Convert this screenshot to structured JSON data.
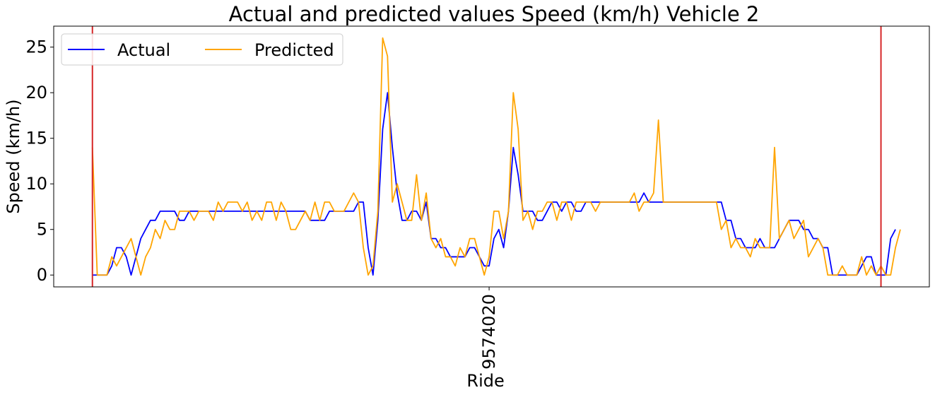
{
  "chart_data": {
    "type": "line",
    "title": "Actual and predicted values Speed (km/h) Vehicle 2",
    "xlabel": "Ride",
    "ylabel": "Speed (km/h)",
    "ylim": [
      -1.3,
      27.3
    ],
    "xlim": [
      -8,
      173
    ],
    "yticks": [
      0,
      5,
      10,
      15,
      20,
      25
    ],
    "xticks": [
      {
        "x": 82,
        "label": "9574020"
      }
    ],
    "vlines": [
      {
        "x": 0,
        "color": "#d62728"
      },
      {
        "x": 163,
        "color": "#d62728"
      }
    ],
    "grid": false,
    "legend": {
      "placement": "upper left",
      "columns": 2
    },
    "series": [
      {
        "name": "Actual",
        "color": "#0000ff",
        "values": [
          0,
          0,
          0,
          0,
          1,
          3,
          3,
          2,
          0,
          2,
          4,
          5,
          6,
          6,
          7,
          7,
          7,
          7,
          6,
          6,
          7,
          7,
          7,
          7,
          7,
          7,
          7,
          7,
          7,
          7,
          7,
          7,
          7,
          7,
          7,
          7,
          7,
          7,
          7,
          7,
          7,
          7,
          7,
          7,
          7,
          6,
          6,
          6,
          6,
          7,
          7,
          7,
          7,
          7,
          7,
          8,
          8,
          3,
          0,
          6,
          16,
          20,
          14,
          9,
          6,
          6,
          7,
          7,
          6,
          8,
          4,
          4,
          3,
          3,
          2,
          2,
          2,
          2,
          3,
          3,
          2,
          1,
          1,
          4,
          5,
          3,
          7,
          14,
          11,
          7,
          7,
          7,
          6,
          6,
          7,
          8,
          8,
          7,
          8,
          8,
          7,
          7,
          8,
          8,
          8,
          8,
          8,
          8,
          8,
          8,
          8,
          8,
          8,
          8,
          9,
          8,
          8,
          8,
          8,
          8,
          8,
          8,
          8,
          8,
          8,
          8,
          8,
          8,
          8,
          8,
          8,
          6,
          6,
          4,
          4,
          3,
          3,
          3,
          4,
          3,
          3,
          3,
          4,
          5,
          6,
          6,
          6,
          5,
          5,
          4,
          4,
          3,
          3,
          0,
          0,
          0,
          0,
          0,
          0,
          1,
          2,
          2,
          0,
          0,
          0,
          4,
          5
        ]
      },
      {
        "name": "Predicted",
        "color": "#ffa500",
        "values": [
          14,
          0,
          0,
          0,
          2,
          1,
          2,
          3,
          4,
          2,
          0,
          2,
          3,
          5,
          4,
          6,
          5,
          5,
          7,
          7,
          7,
          6,
          7,
          7,
          7,
          6,
          8,
          7,
          8,
          8,
          8,
          7,
          8,
          6,
          7,
          6,
          8,
          8,
          6,
          8,
          7,
          5,
          5,
          6,
          7,
          6,
          8,
          6,
          8,
          8,
          7,
          7,
          7,
          8,
          9,
          8,
          3,
          0,
          1,
          7,
          26,
          24,
          8,
          10,
          8,
          6,
          6,
          11,
          6,
          9,
          4,
          3,
          4,
          2,
          2,
          1,
          3,
          2,
          4,
          4,
          2,
          0,
          2,
          7,
          7,
          4,
          7,
          20,
          16,
          6,
          7,
          5,
          7,
          7,
          8,
          8,
          6,
          8,
          8,
          6,
          8,
          8,
          8,
          8,
          7,
          8,
          8,
          8,
          8,
          8,
          8,
          8,
          9,
          7,
          8,
          8,
          9,
          17,
          8,
          8,
          8,
          8,
          8,
          8,
          8,
          8,
          8,
          8,
          8,
          8,
          5,
          6,
          3,
          4,
          3,
          3,
          2,
          4,
          3,
          3,
          3,
          14,
          4,
          5,
          6,
          4,
          5,
          6,
          2,
          3,
          4,
          3,
          0,
          0,
          0,
          1,
          0,
          0,
          0,
          2,
          0,
          1,
          0,
          1,
          0,
          0,
          3,
          5
        ]
      }
    ]
  }
}
